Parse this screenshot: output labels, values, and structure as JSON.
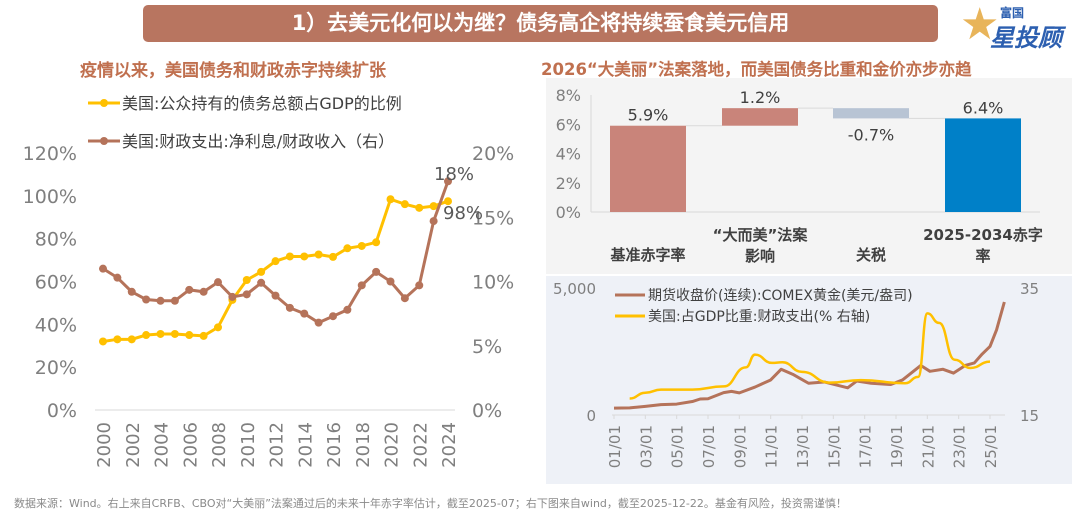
{
  "header": {
    "title": "1）去美元化何以为继？债务高企将持续蚕食美元信用"
  },
  "logo": {
    "small": "富国",
    "big": "星投顾"
  },
  "left_title": "疫情以来，美国债务和财政赤字持续扩张",
  "right_title": "2026“大美丽”法案落地，而美国债务比重和金价亦步亦趋",
  "footer": "数据来源：Wind。右上来自CRFB、CBO对“大美丽”法案通过后的未来十年赤字率估计，截至2025-07；右下图来自wind，截至2025-12-22。基金有风险，投资需谨慎！",
  "colors": {
    "yellow": "#ffc000",
    "brown": "#b5735a",
    "bar_red": "#c9847a",
    "bar_gray": "#b8c4d4",
    "bar_blue": "#0080c8",
    "header": "#b87560"
  },
  "chart_data": [
    {
      "type": "line",
      "x": [
        2000,
        2001,
        2002,
        2003,
        2004,
        2005,
        2006,
        2007,
        2008,
        2009,
        2010,
        2011,
        2012,
        2013,
        2014,
        2015,
        2016,
        2017,
        2018,
        2019,
        2020,
        2021,
        2022,
        2023,
        2024
      ],
      "x_tick_labels": [
        "2000",
        "2002",
        "2004",
        "2006",
        "2008",
        "2010",
        "2012",
        "2014",
        "2016",
        "2018",
        "2020",
        "2022",
        "2024"
      ],
      "y_left_ticks": [
        "0%",
        "20%",
        "40%",
        "60%",
        "80%",
        "100%",
        "120%"
      ],
      "y_right_ticks": [
        "0%",
        "5%",
        "10%",
        "15%",
        "20%"
      ],
      "ylim_left": [
        0,
        120
      ],
      "ylim_right": [
        0,
        20
      ],
      "legend": "top",
      "series": [
        {
          "name": "美国:公众持有的债务总额占GDP的比例",
          "axis": "left",
          "color": "#ffc000",
          "values": [
            32,
            33,
            33,
            35,
            35.5,
            35.5,
            35,
            34.6,
            38.6,
            51.4,
            60.7,
            64.5,
            69.5,
            71.7,
            71.7,
            72.6,
            71.5,
            75.5,
            76.6,
            78.3,
            98.4,
            96.1,
            94.4,
            95.2,
            97.5
          ],
          "end_label": "98%"
        },
        {
          "name": "美国:财政支出:净利息/财政收入（右）",
          "axis": "right",
          "color": "#b5735a",
          "values": [
            11.0,
            10.3,
            9.2,
            8.6,
            8.5,
            8.5,
            9.35,
            9.2,
            9.95,
            8.8,
            9.0,
            9.9,
            8.9,
            7.95,
            7.5,
            6.8,
            7.3,
            7.8,
            9.7,
            10.75,
            10.0,
            8.7,
            9.7,
            14.7,
            17.8
          ],
          "end_label": "18%"
        }
      ]
    },
    {
      "type": "bar",
      "subtype": "waterfall",
      "categories": [
        [
          "基准赤字率"
        ],
        [
          "“大而美”法案",
          "影响"
        ],
        [
          "关税"
        ],
        [
          "2025-2034赤字",
          "率"
        ]
      ],
      "values": [
        5.9,
        1.2,
        -0.7,
        6.4
      ],
      "labels": [
        "5.9%",
        "1.2%",
        "-0.7%",
        "6.4%"
      ],
      "y_ticks": [
        "0%",
        "2%",
        "4%",
        "6%",
        "8%"
      ],
      "ylim": [
        0,
        8
      ]
    },
    {
      "type": "line",
      "x_tick_labels": [
        "01/01",
        "03/01",
        "05/01",
        "07/01",
        "09/01",
        "11/01",
        "13/01",
        "15/01",
        "17/01",
        "19/01",
        "21/01",
        "23/01",
        "25/01"
      ],
      "y_left_ticks": [
        "0",
        "5,000"
      ],
      "ylim_left": [
        0,
        5000
      ],
      "y_right_ticks": [
        "15",
        "35"
      ],
      "ylim_right": [
        15,
        35
      ],
      "legend": "top-left",
      "series": [
        {
          "name": "期货收盘价(连续):COMEX黄金(美元/盎司)",
          "axis": "left",
          "color": "#b5735a",
          "x": [
            "2001-01",
            "2002-01",
            "2003-01",
            "2004-01",
            "2005-01",
            "2006-01",
            "2006-07",
            "2007-01",
            "2008-01",
            "2008-07",
            "2009-01",
            "2010-01",
            "2011-01",
            "2011-09",
            "2012-06",
            "2013-06",
            "2014-06",
            "2015-12",
            "2016-07",
            "2017-06",
            "2018-09",
            "2019-06",
            "2020-08",
            "2021-03",
            "2022-01",
            "2022-09",
            "2023-06",
            "2024-01",
            "2024-07",
            "2025-01",
            "2025-06",
            "2025-12"
          ],
          "values": [
            270,
            280,
            340,
            410,
            430,
            530,
            630,
            640,
            880,
            930,
            870,
            1100,
            1380,
            1800,
            1600,
            1250,
            1300,
            1070,
            1340,
            1250,
            1200,
            1380,
            1950,
            1720,
            1800,
            1650,
            1950,
            2050,
            2400,
            2700,
            3350,
            4450
          ]
        },
        {
          "name": "美国:占GDP比重:财政支出(% 右轴)",
          "axis": "right",
          "color": "#ffc000",
          "x": [
            "2002-01",
            "2003-01",
            "2004-01",
            "2006-01",
            "2008-01",
            "2009-06",
            "2010-01",
            "2011-02",
            "2011-10",
            "2013-01",
            "2014-10",
            "2016-10",
            "2019-08",
            "2020-06",
            "2021-01",
            "2021-10",
            "2022-10",
            "2023-10",
            "2025-01"
          ],
          "values": [
            17.6,
            18.5,
            19.0,
            19.0,
            19.5,
            22.5,
            24.5,
            23.2,
            23.3,
            21.8,
            20.1,
            20.5,
            20.0,
            21.0,
            31.0,
            29.5,
            23.7,
            22.4,
            23.4
          ]
        }
      ]
    }
  ]
}
